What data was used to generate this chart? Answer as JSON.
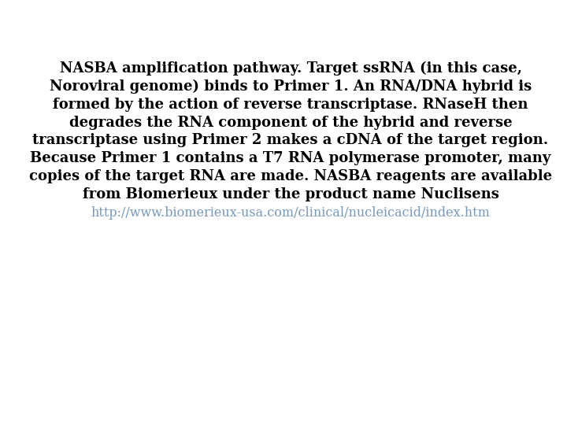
{
  "background_color": "#ffffff",
  "main_text": "NASBA amplification pathway. Target ssRNA (in this case,\nNoroviral genome) binds to Primer 1. An RNA/DNA hybrid is\nformed by the action of reverse transcriptase. RNaseH then\ndegrades the RNA component of the hybrid and reverse\ntranscriptase using Primer 2 makes a cDNA of the target region.\nBecause Primer 1 contains a T7 RNA polymerase promoter, many\ncopies of the target RNA are made. NASBA reagents are available\nfrom Biomerieux under the product name Nuclisens",
  "link_text": "http://www.biomerieux-usa.com/clinical/nucleicacid/index.htm",
  "main_color": "#000000",
  "link_color": "#7799bb",
  "main_fontsize": 13.0,
  "link_fontsize": 11.5,
  "figsize": [
    7.2,
    5.4
  ],
  "dpi": 100
}
